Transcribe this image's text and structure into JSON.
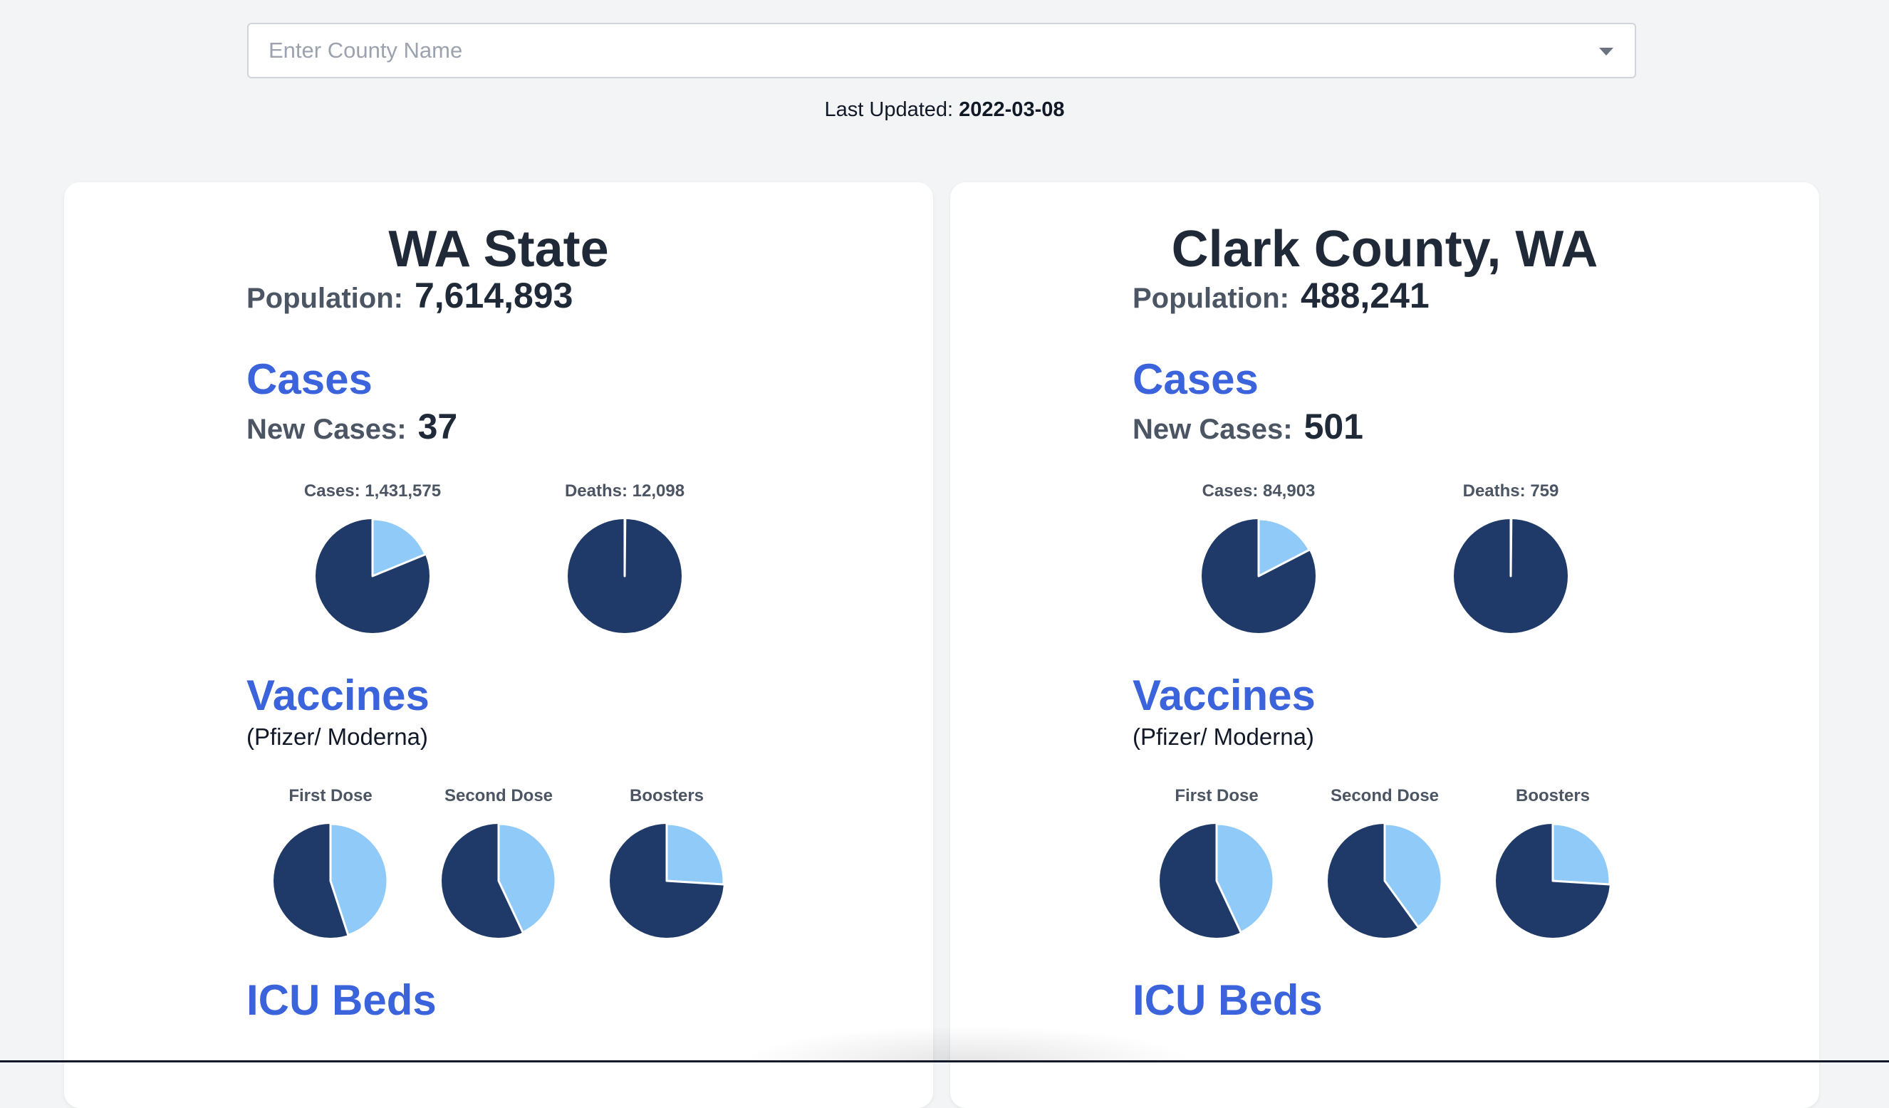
{
  "search": {
    "placeholder": "Enter County Name"
  },
  "last_updated": {
    "label": "Last Updated:",
    "date": "2022-03-08"
  },
  "colors": {
    "pie_primary": "#1f3a68",
    "pie_secondary": "#90caf9",
    "section_title": "#3b63dc"
  },
  "cards": [
    {
      "title": "WA State",
      "population_label": "Population:",
      "population": "7,614,893",
      "cases_title": "Cases",
      "new_cases_label": "New Cases:",
      "new_cases": "37",
      "case_pies": [
        {
          "label": "Cases: 1,431,575",
          "fraction": 0.188
        },
        {
          "label": "Deaths: 12,098",
          "fraction": 0.0016
        }
      ],
      "vaccines_title": "Vaccines",
      "vaccines_note": "(Pfizer/ Moderna)",
      "vaccine_pies": [
        {
          "label": "First Dose",
          "fraction": 0.45
        },
        {
          "label": "Second Dose",
          "fraction": 0.43
        },
        {
          "label": "Boosters",
          "fraction": 0.26
        }
      ],
      "icu_title": "ICU Beds"
    },
    {
      "title": "Clark County, WA",
      "population_label": "Population:",
      "population": "488,241",
      "cases_title": "Cases",
      "new_cases_label": "New Cases:",
      "new_cases": "501",
      "case_pies": [
        {
          "label": "Cases: 84,903",
          "fraction": 0.174
        },
        {
          "label": "Deaths: 759",
          "fraction": 0.0016
        }
      ],
      "vaccines_title": "Vaccines",
      "vaccines_note": "(Pfizer/ Moderna)",
      "vaccine_pies": [
        {
          "label": "First Dose",
          "fraction": 0.43
        },
        {
          "label": "Second Dose",
          "fraction": 0.4
        },
        {
          "label": "Boosters",
          "fraction": 0.26
        }
      ],
      "icu_title": "ICU Beds"
    }
  ]
}
